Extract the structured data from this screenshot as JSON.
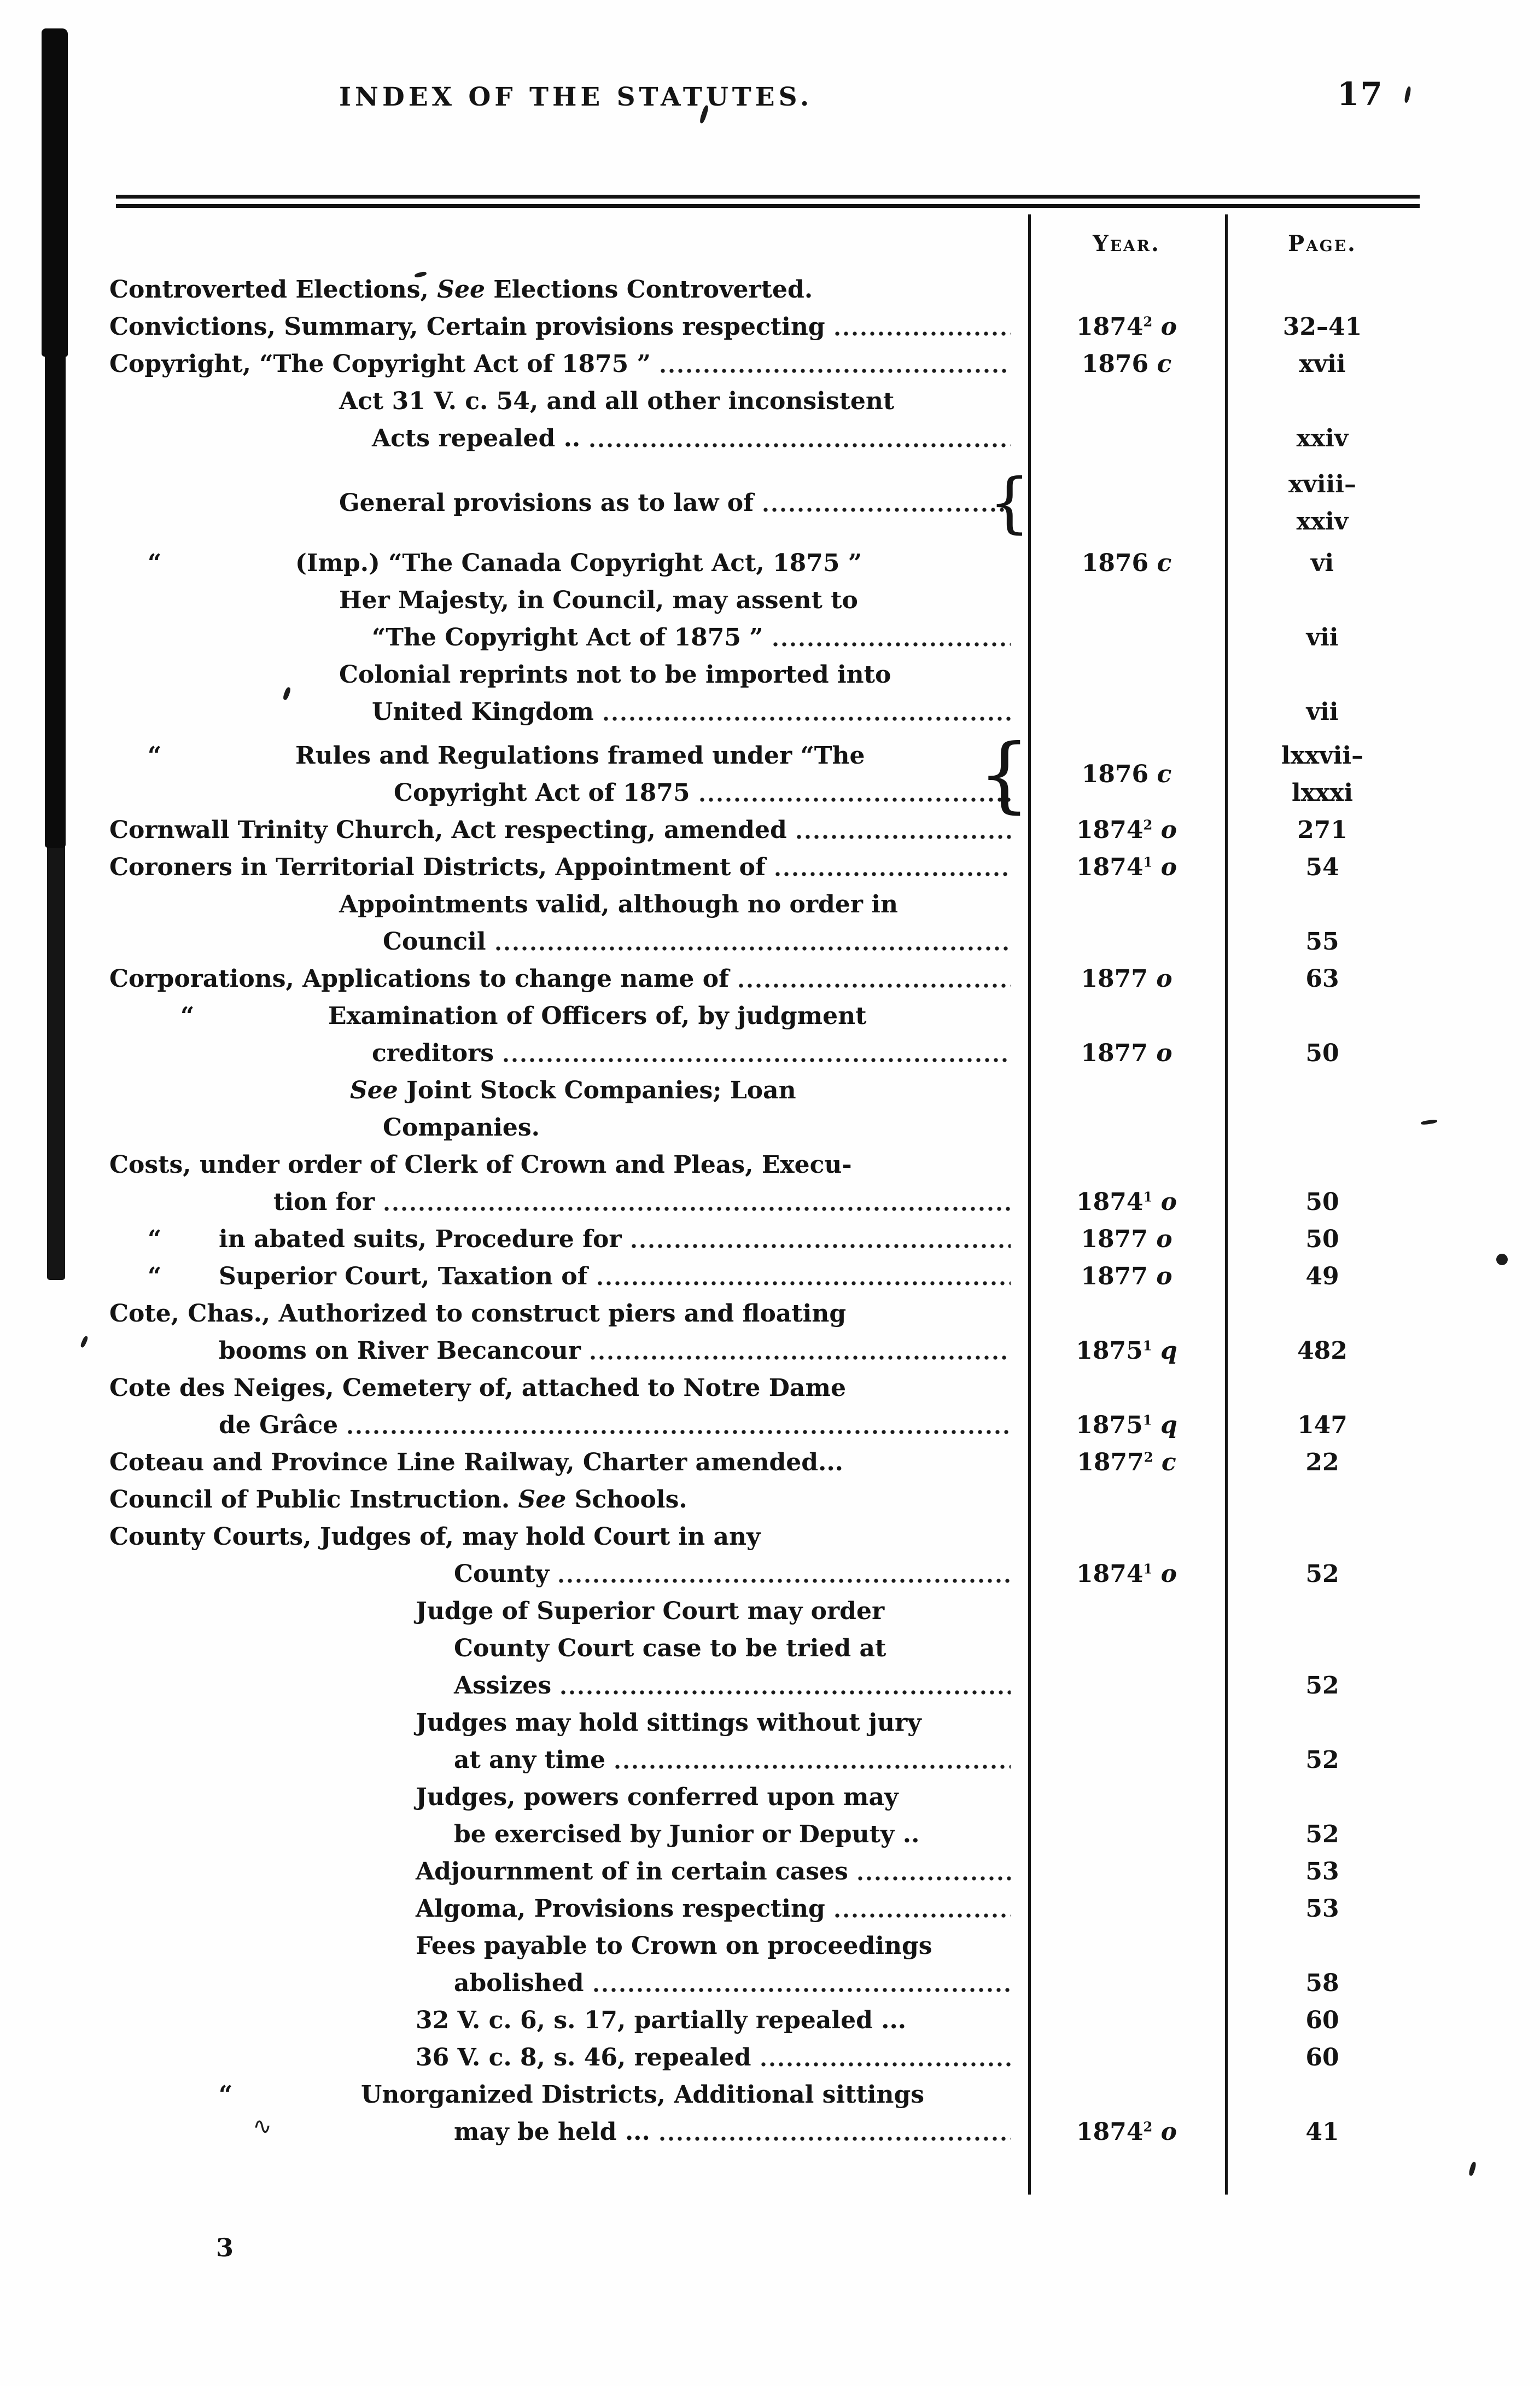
{
  "header": {
    "title": "INDEX OF THE STATUTES.",
    "page_number": "17"
  },
  "table": {
    "year_label": "Year.",
    "page_label": "Page."
  },
  "footer": {
    "signature": "3"
  },
  "rows": [
    {
      "lines": [
        {
          "ind": 0,
          "t": "Controverted Elections, *See* Elections Controverted.",
          "lead": false
        }
      ],
      "year": "",
      "page": []
    },
    {
      "lines": [
        {
          "ind": 0,
          "t": "Convictions, Summary, Certain provisions respecting",
          "lead": true
        }
      ],
      "year": "1874^2 *o*",
      "page": [
        "32–41"
      ]
    },
    {
      "lines": [
        {
          "ind": 0,
          "t": "Copyright, “The Copyright Act of 1875 ”",
          "lead": true
        }
      ],
      "year": "1876 *c*",
      "page": [
        "xvii"
      ]
    },
    {
      "lines": [
        {
          "ind": 420,
          "t": "Act 31 V. c. 54, and all other inconsistent",
          "lead": false
        },
        {
          "ind": 480,
          "t": "Acts repealed ..",
          "lead": true
        }
      ],
      "year": "",
      "page": [
        "xxiv"
      ]
    },
    {
      "mt": 16,
      "center": true,
      "brace": true,
      "lines": [
        {
          "ind": 420,
          "t": "General provisions as to law of",
          "lead": true
        }
      ],
      "year": "",
      "page": [
        "xviii–",
        "xxiv"
      ]
    },
    {
      "mt": 8,
      "ditto": 70,
      "lines": [
        {
          "ind": 340,
          "t": "(Imp.) “The Canada Copyright Act, 1875 ”",
          "lead": false
        }
      ],
      "year": "1876 *c*",
      "page": [
        "vi"
      ]
    },
    {
      "lines": [
        {
          "ind": 420,
          "t": "Her Majesty, in Council, may assent to",
          "lead": false
        },
        {
          "ind": 480,
          "t": "“The Copyright Act of 1875 ”",
          "lead": true
        }
      ],
      "year": "",
      "page": [
        "vii"
      ]
    },
    {
      "lines": [
        {
          "ind": 420,
          "t": "Colonial reprints not to be imported into",
          "lead": false
        },
        {
          "ind": 480,
          "t": "United Kingdom",
          "lead": true
        }
      ],
      "year": "",
      "page": [
        "vii"
      ]
    },
    {
      "mt": 12,
      "ditto": 70,
      "brace": true,
      "yv": "center",
      "lines": [
        {
          "ind": 340,
          "t": "Rules and Regulations framed under “The",
          "lead": false
        },
        {
          "ind": 520,
          "t": "Copyright Act of 1875",
          "lead": true
        }
      ],
      "year": "1876 *c*",
      "page": [
        "lxxvii–",
        "lxxxi"
      ]
    },
    {
      "lines": [
        {
          "ind": 0,
          "t": "Cornwall Trinity Church, Act respecting, amended",
          "lead": true
        }
      ],
      "year": "1874^2 *o*",
      "page": [
        "271"
      ]
    },
    {
      "lines": [
        {
          "ind": 0,
          "t": "Coroners in Territorial Districts, Appointment of",
          "lead": true
        }
      ],
      "year": "1874^1 *o*",
      "page": [
        "54"
      ]
    },
    {
      "lines": [
        {
          "ind": 420,
          "t": "Appointments valid, although no order in",
          "lead": false
        },
        {
          "ind": 500,
          "t": "Council",
          "lead": true
        }
      ],
      "year": "",
      "page": [
        "55"
      ]
    },
    {
      "lines": [
        {
          "ind": 0,
          "t": "Corporations, Applications to change name of",
          "lead": true
        }
      ],
      "year": "1877 *o*",
      "page": [
        "63"
      ]
    },
    {
      "ditto": 130,
      "lines": [
        {
          "ind": 400,
          "t": "Examination of Officers of, by judgment",
          "lead": false
        },
        {
          "ind": 480,
          "t": "creditors",
          "lead": true
        }
      ],
      "year": "1877 *o*",
      "page": [
        "50"
      ]
    },
    {
      "lines": [
        {
          "ind": 440,
          "t": "*See* Joint Stock Companies; Loan",
          "lead": false
        },
        {
          "ind": 500,
          "t": "Companies.",
          "lead": false
        }
      ],
      "year": "",
      "page": []
    },
    {
      "lines": [
        {
          "ind": 0,
          "t": "Costs, under order of Clerk of Crown and Pleas, Execu-",
          "lead": false
        },
        {
          "ind": 300,
          "t": "tion for",
          "lead": true
        }
      ],
      "year": "1874^1 *o*",
      "page": [
        "50"
      ]
    },
    {
      "ditto": 70,
      "lines": [
        {
          "ind": 200,
          "t": "in abated suits, Procedure for",
          "lead": true
        }
      ],
      "year": "1877 *o*",
      "page": [
        "50"
      ]
    },
    {
      "ditto": 70,
      "lines": [
        {
          "ind": 200,
          "t": "Superior Court, Taxation of",
          "lead": true
        }
      ],
      "year": "1877 *o*",
      "page": [
        "49"
      ]
    },
    {
      "lines": [
        {
          "ind": 0,
          "t": "Cote, Chas., Authorized to construct piers and floating",
          "lead": false
        },
        {
          "ind": 200,
          "t": "booms on River Becancour",
          "lead": true
        }
      ],
      "year": "1875^1 *q*",
      "page": [
        "482"
      ]
    },
    {
      "lines": [
        {
          "ind": 0,
          "t": "Cote des Neiges, Cemetery of, attached to Notre Dame",
          "lead": false
        },
        {
          "ind": 200,
          "t": "de Grâce",
          "lead": true
        }
      ],
      "year": "1875^1 *q*",
      "page": [
        "147"
      ]
    },
    {
      "lines": [
        {
          "ind": 0,
          "t": "Coteau and Province Line Railway, Charter amended...",
          "lead": false
        }
      ],
      "year": "1877^2 *c*",
      "page": [
        "22"
      ]
    },
    {
      "lines": [
        {
          "ind": 0,
          "t": "Council of Public Instruction. *See* Schools.",
          "lead": false
        }
      ],
      "year": "",
      "page": []
    },
    {
      "lines": [
        {
          "ind": 0,
          "t": "County Courts, Judges of, may hold Court in any",
          "lead": false
        },
        {
          "ind": 630,
          "t": "County",
          "lead": true
        }
      ],
      "year": "1874^1 *o*",
      "page": [
        "52"
      ]
    },
    {
      "lines": [
        {
          "ind": 560,
          "t": "Judge of Superior Court may order",
          "lead": false
        },
        {
          "ind": 630,
          "t": "County Court case to be tried at",
          "lead": false
        },
        {
          "ind": 630,
          "t": "Assizes",
          "lead": true
        }
      ],
      "year": "",
      "page": [
        "52"
      ]
    },
    {
      "lines": [
        {
          "ind": 560,
          "t": "Judges may hold sittings without jury",
          "lead": false
        },
        {
          "ind": 630,
          "t": "at any time",
          "lead": true
        }
      ],
      "year": "",
      "page": [
        "52"
      ]
    },
    {
      "lines": [
        {
          "ind": 560,
          "t": "Judges, powers conferred upon may",
          "lead": false
        },
        {
          "ind": 630,
          "t": "be exercised by Junior or Deputy ..",
          "lead": false
        }
      ],
      "year": "",
      "page": [
        "52"
      ]
    },
    {
      "lines": [
        {
          "ind": 560,
          "t": "Adjournment of in certain cases",
          "lead": true
        }
      ],
      "year": "",
      "page": [
        "53"
      ]
    },
    {
      "lines": [
        {
          "ind": 560,
          "t": "Algoma, Provisions respecting",
          "lead": true
        }
      ],
      "year": "",
      "page": [
        "53"
      ]
    },
    {
      "lines": [
        {
          "ind": 560,
          "t": "Fees payable to Crown on proceedings",
          "lead": false
        },
        {
          "ind": 630,
          "t": "abolished",
          "lead": true
        }
      ],
      "year": "",
      "page": [
        "58"
      ]
    },
    {
      "lines": [
        {
          "ind": 560,
          "t": "32 V. c. 6, s. 17, partially repealed ...",
          "lead": false
        }
      ],
      "year": "",
      "page": [
        "60"
      ]
    },
    {
      "lines": [
        {
          "ind": 560,
          "t": "36 V. c. 8, s. 46, repealed",
          "lead": true
        }
      ],
      "year": "",
      "page": [
        "60"
      ]
    },
    {
      "ditto": 200,
      "lines": [
        {
          "ind": 460,
          "t": "Unorganized Districts, Additional sittings",
          "lead": false
        },
        {
          "ind": 630,
          "t": "may be held ...",
          "lead": true
        }
      ],
      "year": "1874^2 *o*",
      "page": [
        "41"
      ]
    }
  ]
}
